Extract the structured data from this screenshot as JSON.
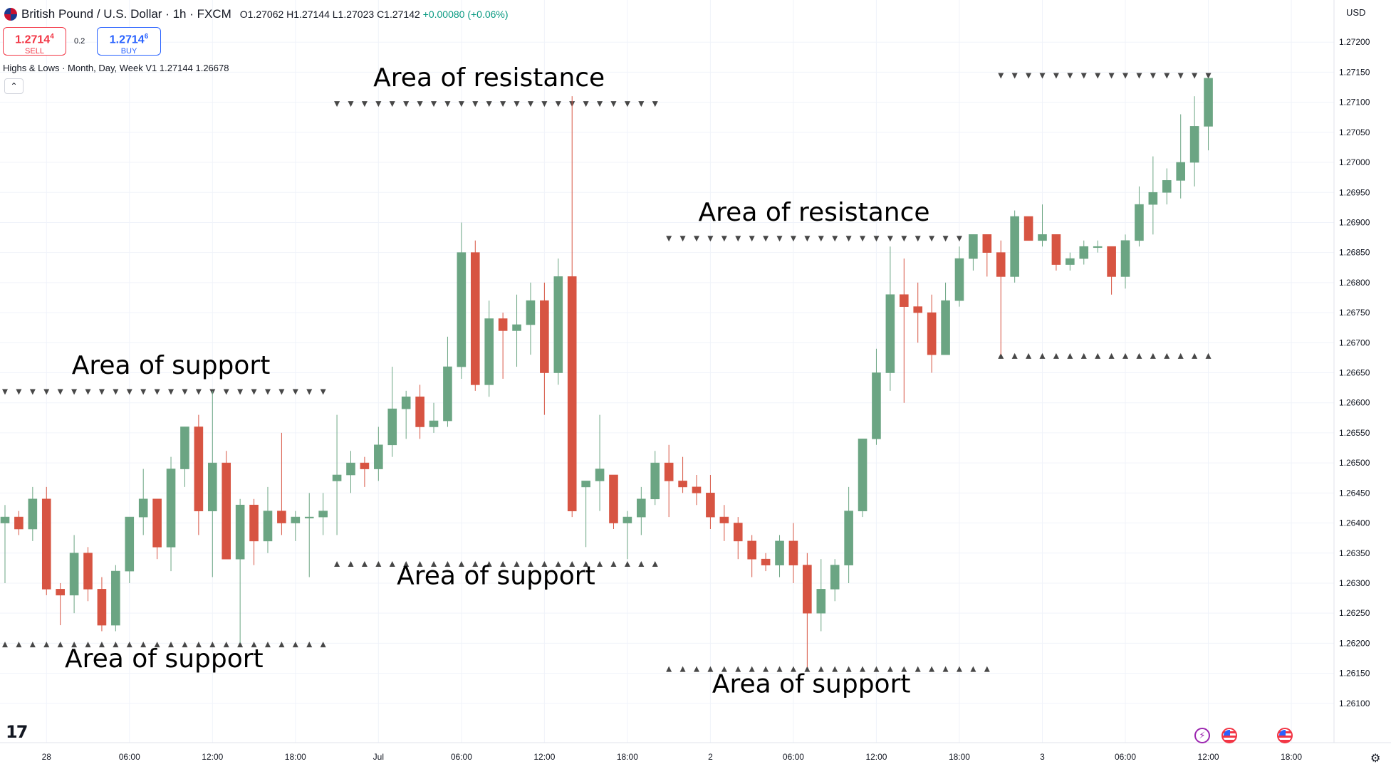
{
  "header": {
    "title": "British Pound / U.S. Dollar · 1h · FXCM",
    "ohlc_o": "O1.27062",
    "ohlc_h": "H1.27144",
    "ohlc_l": "L1.27023",
    "ohlc_c": "C1.27142",
    "change": "+0.00080 (+0.06%)"
  },
  "trade": {
    "sell_price": "1.2714",
    "sell_sup": "4",
    "sell_label": "SELL",
    "spread": "0.2",
    "buy_price": "1.2714",
    "buy_sup": "6",
    "buy_label": "BUY"
  },
  "indicator": {
    "label": "Highs & Lows · Month, Day, Week V1  1.27144  1.26678",
    "collapse_icon": "chevron-up-icon"
  },
  "currency": "USD",
  "colors": {
    "up": "#6ba583",
    "down": "#d75442",
    "marker": "#474747",
    "grid": "#f0f3fa"
  },
  "chart_data": {
    "type": "candlestick",
    "symbol": "GBPUSD",
    "interval": "1h",
    "ylim": [
      1.2605,
      1.2725
    ],
    "y_ticks": [
      "1.27200",
      "1.27150",
      "1.27100",
      "1.27050",
      "1.27000",
      "1.26950",
      "1.26900",
      "1.26850",
      "1.26800",
      "1.26750",
      "1.26700",
      "1.26650",
      "1.26600",
      "1.26550",
      "1.26500",
      "1.26450",
      "1.26400",
      "1.26350",
      "1.26300",
      "1.26250",
      "1.26200",
      "1.26150",
      "1.26100"
    ],
    "x_labels": [
      {
        "label": "28",
        "bar": 3
      },
      {
        "label": "06:00",
        "bar": 9
      },
      {
        "label": "12:00",
        "bar": 15
      },
      {
        "label": "18:00",
        "bar": 21
      },
      {
        "label": "Jul",
        "bar": 27
      },
      {
        "label": "06:00",
        "bar": 33
      },
      {
        "label": "12:00",
        "bar": 39
      },
      {
        "label": "18:00",
        "bar": 45
      },
      {
        "label": "2",
        "bar": 51
      },
      {
        "label": "06:00",
        "bar": 57
      },
      {
        "label": "12:00",
        "bar": 63
      },
      {
        "label": "18:00",
        "bar": 69
      },
      {
        "label": "3",
        "bar": 75
      },
      {
        "label": "06:00",
        "bar": 81
      },
      {
        "label": "12:00",
        "bar": 87
      },
      {
        "label": "18:00",
        "bar": 93
      }
    ],
    "candles": [
      [
        1.264,
        1.2643,
        1.263,
        1.2641
      ],
      [
        1.2641,
        1.2642,
        1.2638,
        1.2639
      ],
      [
        1.2639,
        1.2646,
        1.2637,
        1.2644
      ],
      [
        1.2644,
        1.2646,
        1.2628,
        1.2629
      ],
      [
        1.2629,
        1.263,
        1.2623,
        1.2628
      ],
      [
        1.2628,
        1.2638,
        1.2625,
        1.2635
      ],
      [
        1.2635,
        1.2636,
        1.2627,
        1.2629
      ],
      [
        1.2629,
        1.2631,
        1.2622,
        1.2623
      ],
      [
        1.2623,
        1.2633,
        1.2622,
        1.2632
      ],
      [
        1.2632,
        1.2641,
        1.263,
        1.2641
      ],
      [
        1.2641,
        1.2649,
        1.2638,
        1.2644
      ],
      [
        1.2644,
        1.2644,
        1.2634,
        1.2636
      ],
      [
        1.2636,
        1.2651,
        1.2632,
        1.2649
      ],
      [
        1.2649,
        1.2656,
        1.2646,
        1.2656
      ],
      [
        1.2656,
        1.2658,
        1.2638,
        1.2642
      ],
      [
        1.2642,
        1.2662,
        1.2631,
        1.265
      ],
      [
        1.265,
        1.2652,
        1.2634,
        1.2634
      ],
      [
        1.2634,
        1.2644,
        1.262,
        1.2643
      ],
      [
        1.2643,
        1.2644,
        1.2633,
        1.2637
      ],
      [
        1.2637,
        1.2646,
        1.2635,
        1.2642
      ],
      [
        1.2642,
        1.2655,
        1.2638,
        1.264
      ],
      [
        1.264,
        1.2642,
        1.2637,
        1.2641
      ],
      [
        1.2641,
        1.2645,
        1.2631,
        1.2641
      ],
      [
        1.2641,
        1.2645,
        1.2638,
        1.2642
      ],
      [
        1.2647,
        1.2658,
        1.2638,
        1.2648
      ],
      [
        1.2648,
        1.2652,
        1.2645,
        1.265
      ],
      [
        1.265,
        1.2651,
        1.2646,
        1.2649
      ],
      [
        1.2649,
        1.2656,
        1.2647,
        1.2653
      ],
      [
        1.2653,
        1.2666,
        1.2651,
        1.2659
      ],
      [
        1.2659,
        1.2662,
        1.2654,
        1.2661
      ],
      [
        1.2661,
        1.2663,
        1.2654,
        1.2656
      ],
      [
        1.2656,
        1.266,
        1.2655,
        1.2657
      ],
      [
        1.2657,
        1.2671,
        1.2656,
        1.2666
      ],
      [
        1.2666,
        1.269,
        1.2664,
        1.2685
      ],
      [
        1.2685,
        1.2687,
        1.2662,
        1.2663
      ],
      [
        1.2663,
        1.2677,
        1.2661,
        1.2674
      ],
      [
        1.2674,
        1.2675,
        1.2664,
        1.2672
      ],
      [
        1.2672,
        1.2678,
        1.2666,
        1.2673
      ],
      [
        1.2673,
        1.268,
        1.2668,
        1.2677
      ],
      [
        1.2677,
        1.268,
        1.2658,
        1.2665
      ],
      [
        1.2665,
        1.2684,
        1.2663,
        1.2681
      ],
      [
        1.2681,
        1.2711,
        1.2641,
        1.2642
      ],
      [
        1.2646,
        1.2646,
        1.2636,
        1.2647
      ],
      [
        1.2647,
        1.2658,
        1.2642,
        1.2649
      ],
      [
        1.2648,
        1.2648,
        1.2639,
        1.264
      ],
      [
        1.264,
        1.2642,
        1.2634,
        1.2641
      ],
      [
        1.2641,
        1.2646,
        1.2638,
        1.2644
      ],
      [
        1.2644,
        1.2652,
        1.2643,
        1.265
      ],
      [
        1.265,
        1.2653,
        1.2641,
        1.2647
      ],
      [
        1.2647,
        1.2651,
        1.2645,
        1.2646
      ],
      [
        1.2646,
        1.2648,
        1.2643,
        1.2645
      ],
      [
        1.2645,
        1.2648,
        1.2639,
        1.2641
      ],
      [
        1.2641,
        1.2643,
        1.2637,
        1.264
      ],
      [
        1.264,
        1.2641,
        1.2634,
        1.2637
      ],
      [
        1.2637,
        1.2638,
        1.2631,
        1.2634
      ],
      [
        1.2634,
        1.2635,
        1.2632,
        1.2633
      ],
      [
        1.2633,
        1.2638,
        1.2631,
        1.2637
      ],
      [
        1.2637,
        1.264,
        1.263,
        1.2633
      ],
      [
        1.2633,
        1.2635,
        1.2616,
        1.2625
      ],
      [
        1.2625,
        1.2634,
        1.2622,
        1.2629
      ],
      [
        1.2629,
        1.2634,
        1.2627,
        1.2633
      ],
      [
        1.2633,
        1.2646,
        1.263,
        1.2642
      ],
      [
        1.2642,
        1.2654,
        1.2641,
        1.2654
      ],
      [
        1.2654,
        1.2669,
        1.2653,
        1.2665
      ],
      [
        1.2665,
        1.2686,
        1.2662,
        1.2678
      ],
      [
        1.2678,
        1.2684,
        1.266,
        1.2676
      ],
      [
        1.2676,
        1.268,
        1.267,
        1.2675
      ],
      [
        1.2675,
        1.2678,
        1.2665,
        1.2668
      ],
      [
        1.2668,
        1.268,
        1.2668,
        1.2677
      ],
      [
        1.2677,
        1.2686,
        1.2676,
        1.2684
      ],
      [
        1.2684,
        1.2688,
        1.2682,
        1.2688
      ],
      [
        1.2688,
        1.2688,
        1.2681,
        1.2685
      ],
      [
        1.2685,
        1.2687,
        1.2668,
        1.2681
      ],
      [
        1.2681,
        1.2692,
        1.268,
        1.2691
      ],
      [
        1.2691,
        1.2691,
        1.2687,
        1.2687
      ],
      [
        1.2687,
        1.2693,
        1.2686,
        1.2688
      ],
      [
        1.2688,
        1.2688,
        1.2682,
        1.2683
      ],
      [
        1.2683,
        1.2685,
        1.2682,
        1.2684
      ],
      [
        1.2684,
        1.2687,
        1.2683,
        1.2686
      ],
      [
        1.2686,
        1.2687,
        1.2685,
        1.2686
      ],
      [
        1.2686,
        1.2686,
        1.2678,
        1.2681
      ],
      [
        1.2681,
        1.2688,
        1.2679,
        1.2687
      ],
      [
        1.2687,
        1.2696,
        1.2686,
        1.2693
      ],
      [
        1.2693,
        1.2701,
        1.2688,
        1.2695
      ],
      [
        1.2695,
        1.2699,
        1.2693,
        1.2697
      ],
      [
        1.2697,
        1.2708,
        1.2694,
        1.27
      ],
      [
        1.27,
        1.2711,
        1.2696,
        1.2706
      ],
      [
        1.2706,
        1.2714,
        1.2702,
        1.2714
      ]
    ],
    "levels": [
      {
        "kind": "resistance",
        "price": 1.26618,
        "from": 0,
        "to": 23
      },
      {
        "kind": "support",
        "price": 1.26198,
        "from": 0,
        "to": 23
      },
      {
        "kind": "resistance",
        "price": 1.27097,
        "from": 24,
        "to": 47
      },
      {
        "kind": "support",
        "price": 1.26332,
        "from": 24,
        "to": 47
      },
      {
        "kind": "resistance",
        "price": 1.26873,
        "from": 48,
        "to": 71
      },
      {
        "kind": "support",
        "price": 1.26157,
        "from": 48,
        "to": 71
      },
      {
        "kind": "resistance",
        "price": 1.27144,
        "from": 72,
        "to": 87
      },
      {
        "kind": "support",
        "price": 1.26678,
        "from": 72,
        "to": 87
      }
    ],
    "annotations": [
      {
        "text": "Area of support",
        "bar": 12,
        "price": 1.26648
      },
      {
        "text": "Area of support",
        "bar": 11.5,
        "price": 1.2616
      },
      {
        "text": "Area of resistance",
        "bar": 35,
        "price": 1.27127
      },
      {
        "text": "Area of support",
        "bar": 35.5,
        "price": 1.26298
      },
      {
        "text": "Area of resistance",
        "bar": 58.5,
        "price": 1.26903
      },
      {
        "text": "Area of support",
        "bar": 58.3,
        "price": 1.26118
      }
    ]
  }
}
